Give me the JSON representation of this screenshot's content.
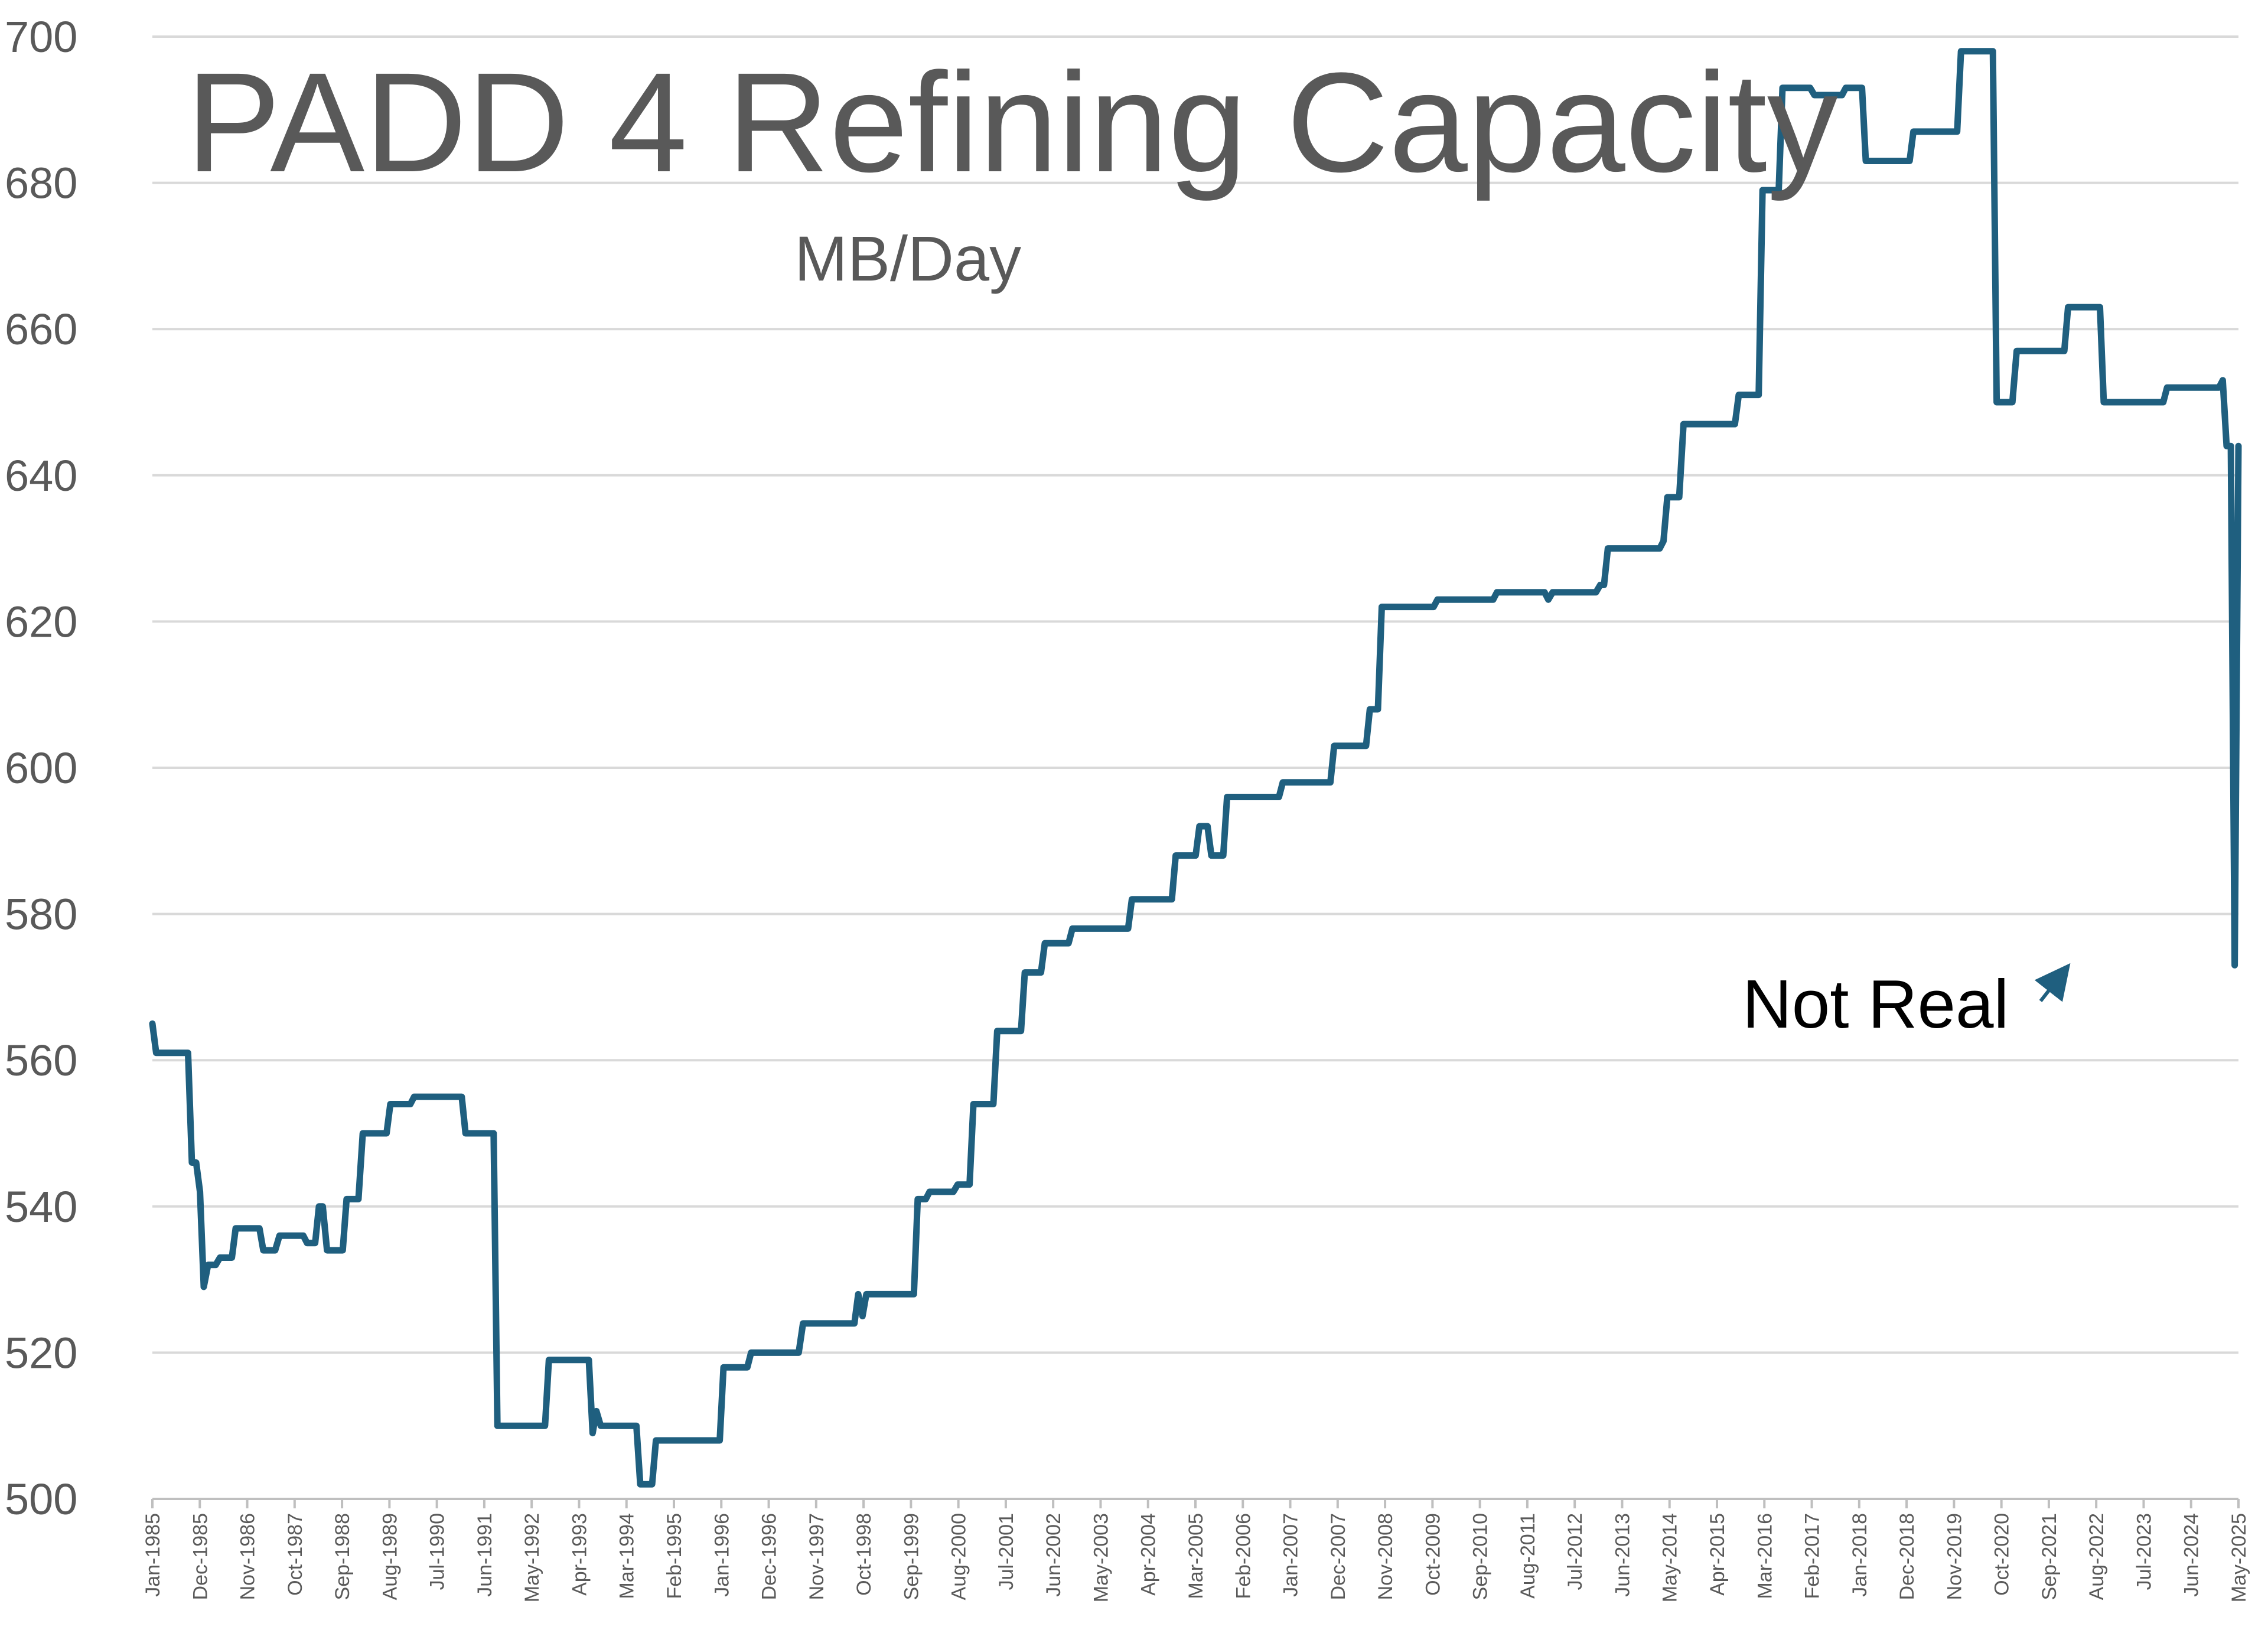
{
  "chart_data": {
    "type": "line",
    "title": "PADD 4 Refining Capacity",
    "subtitle": "MB/Day",
    "xlabel": "",
    "ylabel": "",
    "ylim": [
      500,
      700
    ],
    "yticks": [
      500,
      520,
      540,
      560,
      580,
      600,
      620,
      640,
      660,
      680,
      700
    ],
    "x_tick_labels": [
      "Jan-1985",
      "Dec-1985",
      "Nov-1986",
      "Oct-1987",
      "Sep-1988",
      "Aug-1989",
      "Jul-1990",
      "Jun-1991",
      "May-1992",
      "Apr-1993",
      "Mar-1994",
      "Feb-1995",
      "Jan-1996",
      "Dec-1996",
      "Nov-1997",
      "Oct-1998",
      "Sep-1999",
      "Aug-2000",
      "Jul-2001",
      "Jun-2002",
      "May-2003",
      "Apr-2004",
      "Mar-2005",
      "Feb-2006",
      "Jan-2007",
      "Dec-2007",
      "Nov-2008",
      "Oct-2009",
      "Sep-2010",
      "Aug-2011",
      "Jul-2012",
      "Jun-2013",
      "May-2014",
      "Apr-2015",
      "Mar-2016",
      "Feb-2017",
      "Jan-2018",
      "Dec-2018",
      "Nov-2019",
      "Oct-2020",
      "Sep-2021",
      "Aug-2022",
      "Jul-2023",
      "Jun-2024",
      "May-2025"
    ],
    "grid": true,
    "legend": "none",
    "colors": {
      "series": "#1f5f7f",
      "grid": "#d9d9d9",
      "text": "#595959",
      "arrow": "#1f5f7f"
    },
    "annotations": [
      {
        "text": "Not Real",
        "points_to": {
          "x": 2025.33,
          "y": 573
        }
      }
    ],
    "series": [
      {
        "points": [
          [
            1985.0,
            565
          ],
          [
            1985.08,
            561
          ],
          [
            1985.75,
            561
          ],
          [
            1985.83,
            546
          ],
          [
            1985.92,
            546
          ],
          [
            1986.0,
            542
          ],
          [
            1986.08,
            529
          ],
          [
            1986.17,
            532
          ],
          [
            1986.33,
            532
          ],
          [
            1986.42,
            533
          ],
          [
            1986.67,
            533
          ],
          [
            1986.75,
            537
          ],
          [
            1987.25,
            537
          ],
          [
            1987.33,
            534
          ],
          [
            1987.58,
            534
          ],
          [
            1987.67,
            536
          ],
          [
            1988.17,
            536
          ],
          [
            1988.25,
            535
          ],
          [
            1988.42,
            535
          ],
          [
            1988.5,
            540
          ],
          [
            1988.58,
            540
          ],
          [
            1988.67,
            534
          ],
          [
            1989.0,
            534
          ],
          [
            1989.08,
            541
          ],
          [
            1989.33,
            541
          ],
          [
            1989.42,
            550
          ],
          [
            1989.92,
            550
          ],
          [
            1990.0,
            554
          ],
          [
            1990.42,
            554
          ],
          [
            1990.5,
            555
          ],
          [
            1991.5,
            555
          ],
          [
            1991.58,
            550
          ],
          [
            1992.17,
            550
          ],
          [
            1992.25,
            510
          ],
          [
            1993.25,
            510
          ],
          [
            1993.33,
            519
          ],
          [
            1994.17,
            519
          ],
          [
            1994.25,
            509
          ],
          [
            1994.33,
            512
          ],
          [
            1994.42,
            510
          ],
          [
            1995.17,
            510
          ],
          [
            1995.25,
            502
          ],
          [
            1995.5,
            502
          ],
          [
            1995.58,
            508
          ],
          [
            1996.92,
            508
          ],
          [
            1997.0,
            518
          ],
          [
            1997.5,
            518
          ],
          [
            1997.58,
            520
          ],
          [
            1998.58,
            520
          ],
          [
            1998.67,
            524
          ],
          [
            1999.75,
            524
          ],
          [
            1999.83,
            528
          ],
          [
            1999.92,
            525
          ],
          [
            2000.0,
            528
          ],
          [
            2001.0,
            528
          ],
          [
            2001.08,
            541
          ],
          [
            2001.25,
            541
          ],
          [
            2001.33,
            542
          ],
          [
            2001.83,
            542
          ],
          [
            2001.92,
            543
          ],
          [
            2002.17,
            543
          ],
          [
            2002.25,
            554
          ],
          [
            2002.67,
            554
          ],
          [
            2002.75,
            564
          ],
          [
            2003.25,
            564
          ],
          [
            2003.33,
            572
          ],
          [
            2003.67,
            572
          ],
          [
            2003.75,
            576
          ],
          [
            2004.25,
            576
          ],
          [
            2004.33,
            578
          ],
          [
            2005.5,
            578
          ],
          [
            2005.58,
            582
          ],
          [
            2006.42,
            582
          ],
          [
            2006.5,
            588
          ],
          [
            2006.92,
            588
          ],
          [
            2007.0,
            592
          ],
          [
            2007.17,
            592
          ],
          [
            2007.25,
            588
          ],
          [
            2007.5,
            588
          ],
          [
            2007.58,
            596
          ],
          [
            2008.67,
            596
          ],
          [
            2008.75,
            598
          ],
          [
            2009.75,
            598
          ],
          [
            2009.83,
            603
          ],
          [
            2010.5,
            603
          ],
          [
            2010.58,
            608
          ],
          [
            2010.75,
            608
          ],
          [
            2010.83,
            622
          ],
          [
            2011.92,
            622
          ],
          [
            2012.0,
            623
          ],
          [
            2013.17,
            623
          ],
          [
            2013.25,
            624
          ],
          [
            2014.25,
            624
          ],
          [
            2014.33,
            623
          ],
          [
            2014.42,
            624
          ],
          [
            2015.33,
            624
          ],
          [
            2015.42,
            625
          ],
          [
            2015.5,
            625
          ],
          [
            2015.58,
            630
          ],
          [
            2016.67,
            630
          ],
          [
            2016.75,
            631
          ],
          [
            2016.83,
            637
          ],
          [
            2017.08,
            637
          ],
          [
            2017.17,
            647
          ],
          [
            2018.25,
            647
          ],
          [
            2018.33,
            651
          ],
          [
            2018.75,
            651
          ],
          [
            2018.83,
            679
          ],
          [
            2019.17,
            679
          ],
          [
            2019.25,
            693
          ],
          [
            2019.83,
            693
          ],
          [
            2019.92,
            692
          ],
          [
            2020.5,
            692
          ],
          [
            2020.58,
            693
          ],
          [
            2020.92,
            693
          ],
          [
            2021.0,
            683
          ],
          [
            2021.92,
            683
          ],
          [
            2022.0,
            687
          ],
          [
            2022.92,
            687
          ],
          [
            2023.0,
            698
          ],
          [
            2023.67,
            698
          ],
          [
            2023.75,
            650
          ],
          [
            2024.08,
            650
          ],
          [
            2024.17,
            657
          ],
          [
            2025.17,
            657
          ],
          [
            2025.25,
            663
          ],
          [
            2025.92,
            663
          ],
          [
            2026.0,
            650
          ],
          [
            2027.25,
            650
          ],
          [
            2027.33,
            652
          ],
          [
            2028.42,
            652
          ],
          [
            2028.5,
            653
          ],
          [
            2028.58,
            644
          ],
          [
            2028.67,
            644
          ],
          [
            2028.75,
            573
          ],
          [
            2028.83,
            644
          ]
        ]
      }
    ]
  }
}
